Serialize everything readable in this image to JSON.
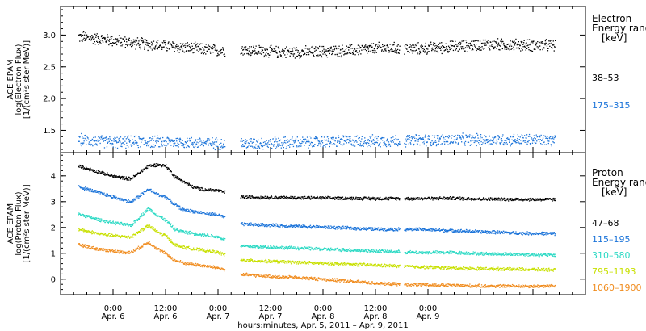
{
  "chart_data": [
    {
      "type": "scatter",
      "panel": "electron",
      "ylabel_lines": [
        "ACE EPAM",
        "log(Electron Flux)",
        "[1/(cm²s ster MeV)]"
      ],
      "ylim": [
        1.15,
        3.45
      ],
      "yticks": [
        1.5,
        2.0,
        2.5,
        3.0
      ],
      "ytick_labels": [
        "1.5",
        "2.0",
        "2.5",
        "3.0"
      ],
      "legend": {
        "title_lines": [
          "Electron",
          "Energy range",
          "[keV]"
        ],
        "entries": [
          {
            "label": "38–53",
            "color": "#000000"
          },
          {
            "label": "175–315",
            "color": "#1a73d9"
          }
        ]
      },
      "series": [
        {
          "name": "38–53",
          "color": "#000000",
          "x": [
            -8,
            0,
            8,
            16,
            24,
            29,
            37,
            45,
            53,
            61,
            69,
            77,
            85,
            93,
            101
          ],
          "y": [
            2.98,
            2.92,
            2.86,
            2.81,
            2.76,
            2.78,
            2.74,
            2.74,
            2.76,
            2.8,
            2.79,
            2.82,
            2.86,
            2.85,
            2.84
          ]
        },
        {
          "name": "175–315",
          "color": "#1a73d9",
          "x": [
            -8,
            0,
            8,
            16,
            24,
            29,
            37,
            45,
            53,
            61,
            69,
            77,
            85,
            93,
            101
          ],
          "y": [
            1.36,
            1.32,
            1.33,
            1.32,
            1.3,
            1.3,
            1.31,
            1.32,
            1.34,
            1.34,
            1.35,
            1.36,
            1.36,
            1.36,
            1.35
          ]
        }
      ]
    },
    {
      "type": "scatter",
      "panel": "proton",
      "ylabel_lines": [
        "ACE EPAM",
        "log(Proton Flux)",
        "[1/(cm²s ster MeV)]"
      ],
      "ylim": [
        -0.6,
        4.9
      ],
      "yticks": [
        0,
        1,
        2,
        3,
        4
      ],
      "ytick_labels": [
        "0",
        "1",
        "2",
        "3",
        "4"
      ],
      "legend": {
        "title_lines": [
          "Proton",
          "Energy range",
          "[keV]"
        ],
        "entries": [
          {
            "label": "47–68",
            "color": "#000000"
          },
          {
            "label": "115–195",
            "color": "#1a73d9"
          },
          {
            "label": "310–580",
            "color": "#2bd9c4"
          },
          {
            "label": "795–1193",
            "color": "#c8e000"
          },
          {
            "label": "1060–1900",
            "color": "#f08c1e"
          }
        ]
      },
      "series": [
        {
          "name": "47–68",
          "color": "#000000",
          "x": [
            -8,
            -4,
            0,
            4,
            8,
            10,
            12,
            14,
            16,
            18,
            20,
            24,
            29,
            37,
            45,
            53,
            61,
            69,
            77,
            85,
            93,
            101
          ],
          "y": [
            4.4,
            4.2,
            4.0,
            3.9,
            4.4,
            4.45,
            4.4,
            4.0,
            3.8,
            3.6,
            3.5,
            3.45,
            3.2,
            3.18,
            3.16,
            3.15,
            3.14,
            3.14,
            3.15,
            3.12,
            3.11,
            3.1
          ]
        },
        {
          "name": "115–195",
          "color": "#1a73d9",
          "x": [
            -8,
            -4,
            0,
            4,
            8,
            10,
            12,
            14,
            16,
            18,
            20,
            24,
            29,
            37,
            45,
            53,
            61,
            69,
            77,
            85,
            93,
            101
          ],
          "y": [
            3.6,
            3.4,
            3.2,
            3.0,
            3.5,
            3.3,
            3.2,
            2.9,
            2.7,
            2.65,
            2.6,
            2.5,
            2.15,
            2.1,
            2.05,
            2.0,
            1.95,
            1.95,
            1.9,
            1.85,
            1.8,
            1.78
          ]
        },
        {
          "name": "310–580",
          "color": "#2bd9c4",
          "x": [
            -8,
            -4,
            0,
            4,
            8,
            10,
            12,
            14,
            16,
            18,
            20,
            24,
            29,
            37,
            45,
            53,
            61,
            69,
            77,
            85,
            93,
            101
          ],
          "y": [
            2.55,
            2.35,
            2.2,
            2.1,
            2.75,
            2.5,
            2.3,
            1.95,
            1.85,
            1.8,
            1.75,
            1.65,
            1.3,
            1.25,
            1.2,
            1.15,
            1.1,
            1.05,
            1.05,
            1.0,
            0.98,
            0.95
          ]
        },
        {
          "name": "795–1193",
          "color": "#c8e000",
          "x": [
            -8,
            -4,
            0,
            4,
            8,
            10,
            12,
            14,
            16,
            18,
            20,
            24,
            29,
            37,
            45,
            53,
            61,
            69,
            77,
            85,
            93,
            101
          ],
          "y": [
            1.95,
            1.8,
            1.7,
            1.65,
            2.1,
            1.85,
            1.7,
            1.35,
            1.25,
            1.2,
            1.15,
            1.05,
            0.75,
            0.7,
            0.65,
            0.6,
            0.55,
            0.5,
            0.45,
            0.42,
            0.4,
            0.38
          ]
        },
        {
          "name": "1060–1900",
          "color": "#f08c1e",
          "x": [
            -8,
            -4,
            0,
            4,
            8,
            10,
            12,
            14,
            16,
            18,
            20,
            24,
            29,
            37,
            45,
            53,
            61,
            69,
            77,
            85,
            93,
            101
          ],
          "y": [
            1.35,
            1.2,
            1.1,
            1.05,
            1.45,
            1.2,
            1.0,
            0.75,
            0.65,
            0.6,
            0.55,
            0.45,
            0.2,
            0.12,
            0.05,
            -0.05,
            -0.15,
            -0.2,
            -0.22,
            -0.25,
            -0.25,
            -0.25
          ]
        }
      ]
    }
  ],
  "x_axis": {
    "xlim": [
      -12,
      108
    ],
    "major_ticks": [
      0,
      12,
      24,
      36,
      48,
      60,
      72,
      84,
      96
    ],
    "minor_step": 3,
    "tick_time_labels": [
      "0:00",
      "12:00",
      "0:00",
      "12:00",
      "0:00",
      "12:00",
      "0:00"
    ],
    "tick_date_labels": [
      "Apr. 6",
      "Apr. 6",
      "Apr. 7",
      "Apr. 7",
      "Apr. 8",
      "Apr. 8",
      "Apr. 9"
    ],
    "labeled_ticks": [
      0,
      12,
      24,
      36,
      48,
      60,
      72
    ],
    "xlabel": "hours:minutes, Apr.  5, 2011 – Apr.  9, 2011",
    "data_gaps": [
      [
        25.5,
        29
      ],
      [
        65.5,
        66.5
      ]
    ]
  }
}
